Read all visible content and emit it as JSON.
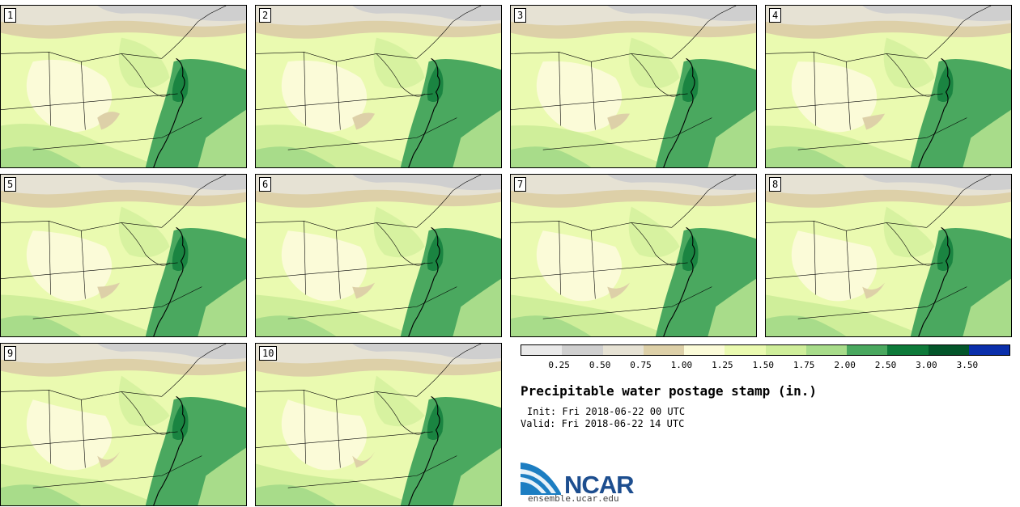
{
  "title": "Precipitable water postage stamp (in.)",
  "init": "Init: Fri 2018-06-22 00 UTC",
  "valid": "Valid: Fri 2018-06-22 14 UTC",
  "panels": [
    "1",
    "2",
    "3",
    "4",
    "5",
    "6",
    "7",
    "8",
    "9",
    "10"
  ],
  "legend": {
    "labels": [
      "0.25",
      "0.50",
      "0.75",
      "1.00",
      "1.25",
      "1.50",
      "1.75",
      "2.00",
      "2.50",
      "3.00",
      "3.50"
    ],
    "colors": [
      "#e9e9e9",
      "#cfcfcf",
      "#e6e2d4",
      "#ddd0a8",
      "#fbfbd8",
      "#eafab0",
      "#cfee9a",
      "#a8dc8a",
      "#4aa85f",
      "#0e7a3a",
      "#03552a",
      "#0a2fab"
    ]
  },
  "logo": {
    "name": "NCAR",
    "url": "ensemble.ucar.edu"
  }
}
